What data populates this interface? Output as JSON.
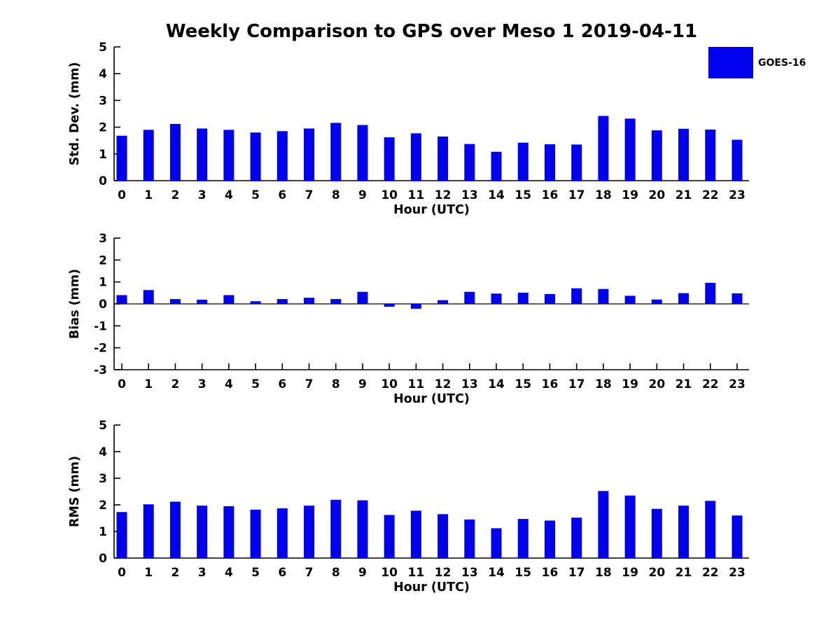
{
  "title": "Weekly Comparison to GPS over Meso 1 2019-04-11",
  "legend": {
    "label": "GOES-16",
    "color": "#0000EE",
    "position": "upper right"
  },
  "colors": {
    "bar": "#0000EE",
    "axis": "#000000",
    "background": "#ffffff"
  },
  "xlabel": "Hour (UTC)",
  "chart_data": [
    {
      "type": "bar",
      "title": "",
      "ylabel": "Std. Dev. (mm)",
      "xlabel": "Hour (UTC)",
      "ylim": [
        0,
        5
      ],
      "yticks": [
        0,
        1,
        2,
        3,
        4,
        5
      ],
      "grid": false,
      "categories": [
        "0",
        "1",
        "2",
        "3",
        "4",
        "5",
        "6",
        "7",
        "8",
        "9",
        "10",
        "11",
        "12",
        "13",
        "14",
        "15",
        "16",
        "17",
        "18",
        "19",
        "20",
        "21",
        "22",
        "23"
      ],
      "series": [
        {
          "name": "GOES-16",
          "color": "#0000EE",
          "values": [
            1.68,
            1.9,
            2.12,
            1.95,
            1.9,
            1.8,
            1.85,
            1.95,
            2.16,
            2.08,
            1.62,
            1.77,
            1.65,
            1.37,
            1.08,
            1.42,
            1.36,
            1.35,
            2.42,
            2.32,
            1.88,
            1.94,
            1.91,
            1.53
          ]
        }
      ]
    },
    {
      "type": "bar",
      "title": "",
      "ylabel": "Bias (mm)",
      "xlabel": "Hour (UTC)",
      "ylim": [
        -3,
        3
      ],
      "yticks": [
        -3,
        -2,
        -1,
        0,
        1,
        2,
        3
      ],
      "grid": false,
      "zero_line": true,
      "categories": [
        "0",
        "1",
        "2",
        "3",
        "4",
        "5",
        "6",
        "7",
        "8",
        "9",
        "10",
        "11",
        "12",
        "13",
        "14",
        "15",
        "16",
        "17",
        "18",
        "19",
        "20",
        "21",
        "22",
        "23"
      ],
      "series": [
        {
          "name": "GOES-16",
          "color": "#0000EE",
          "values": [
            0.4,
            0.63,
            0.22,
            0.19,
            0.4,
            0.12,
            0.22,
            0.28,
            0.22,
            0.55,
            -0.13,
            -0.22,
            0.17,
            0.55,
            0.47,
            0.51,
            0.45,
            0.71,
            0.68,
            0.37,
            0.2,
            0.49,
            0.96,
            0.48
          ]
        }
      ]
    },
    {
      "type": "bar",
      "title": "",
      "ylabel": "RMS (mm)",
      "xlabel": "Hour (UTC)",
      "ylim": [
        0,
        5
      ],
      "yticks": [
        0,
        1,
        2,
        3,
        4,
        5
      ],
      "grid": false,
      "categories": [
        "0",
        "1",
        "2",
        "3",
        "4",
        "5",
        "6",
        "7",
        "8",
        "9",
        "10",
        "11",
        "12",
        "13",
        "14",
        "15",
        "16",
        "17",
        "18",
        "19",
        "20",
        "21",
        "22",
        "23"
      ],
      "series": [
        {
          "name": "GOES-16",
          "color": "#0000EE",
          "values": [
            1.73,
            2.02,
            2.12,
            1.97,
            1.95,
            1.82,
            1.87,
            1.97,
            2.19,
            2.17,
            1.62,
            1.78,
            1.65,
            1.45,
            1.12,
            1.47,
            1.41,
            1.52,
            2.52,
            2.35,
            1.85,
            1.97,
            2.15,
            1.6
          ]
        }
      ]
    }
  ]
}
